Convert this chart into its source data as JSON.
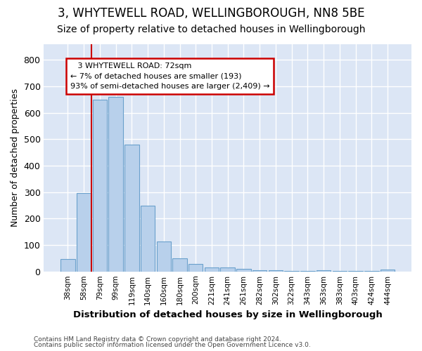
{
  "title1": "3, WHYTEWELL ROAD, WELLINGBOROUGH, NN8 5BE",
  "title2": "Size of property relative to detached houses in Wellingborough",
  "xlabel": "Distribution of detached houses by size in Wellingborough",
  "ylabel": "Number of detached properties",
  "footnote1": "Contains HM Land Registry data © Crown copyright and database right 2024.",
  "footnote2": "Contains public sector information licensed under the Open Government Licence v3.0.",
  "annotation_line1": "3 WHYTEWELL ROAD: 72sqm",
  "annotation_line2": "← 7% of detached houses are smaller (193)",
  "annotation_line3": "93% of semi-detached houses are larger (2,409) →",
  "bar_labels": [
    "38sqm",
    "58sqm",
    "79sqm",
    "99sqm",
    "119sqm",
    "140sqm",
    "160sqm",
    "180sqm",
    "200sqm",
    "221sqm",
    "241sqm",
    "261sqm",
    "282sqm",
    "302sqm",
    "322sqm",
    "343sqm",
    "363sqm",
    "383sqm",
    "403sqm",
    "424sqm",
    "444sqm"
  ],
  "bar_values": [
    47,
    295,
    650,
    660,
    478,
    249,
    114,
    50,
    28,
    16,
    14,
    10,
    5,
    4,
    3,
    2,
    5,
    2,
    2,
    1,
    7
  ],
  "bar_color": "#b8d0eb",
  "bar_edge_color": "#6aa0cc",
  "vline_color": "#cc0000",
  "vline_x_idx": 1.5,
  "annotation_box_color": "#cc0000",
  "ylim": [
    0,
    860
  ],
  "yticks": [
    0,
    100,
    200,
    300,
    400,
    500,
    600,
    700,
    800
  ],
  "fig_bg_color": "#ffffff",
  "plot_bg_color": "#dce6f5",
  "grid_color": "#ffffff",
  "title1_fontsize": 12,
  "title2_fontsize": 10,
  "bar_width": 0.9
}
